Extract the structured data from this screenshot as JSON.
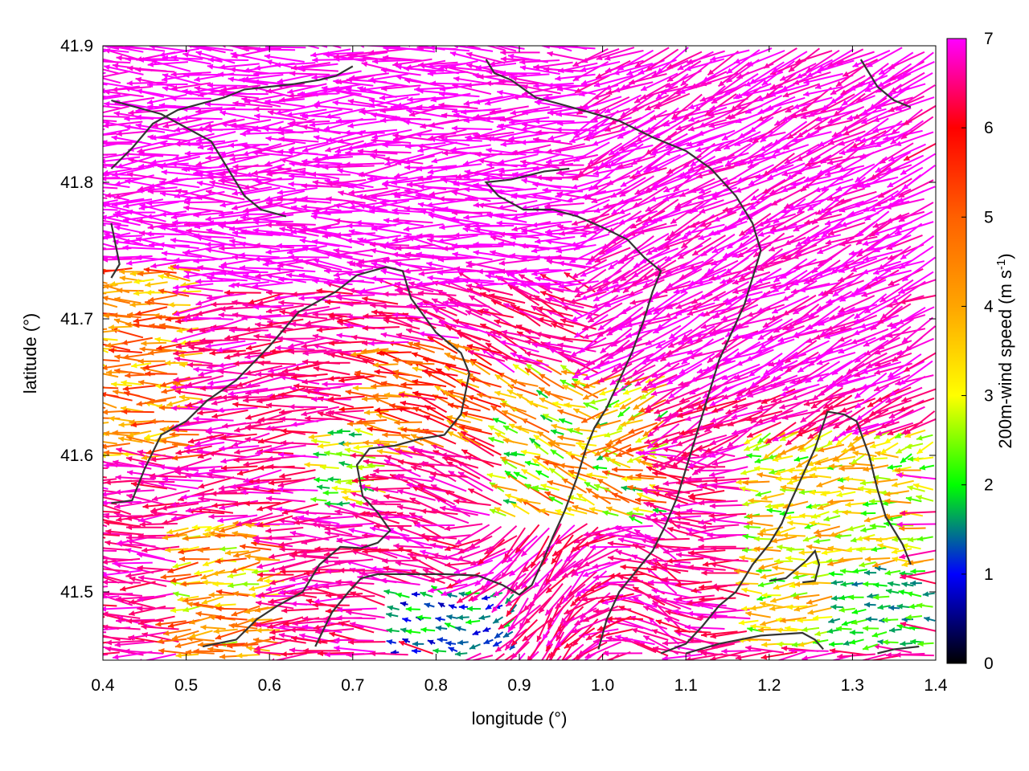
{
  "chart_data": {
    "type": "vector-field",
    "xlabel": "longitude (°)",
    "ylabel": "latitude (°)",
    "colorbar_label": "200m-wind speed (m s",
    "colorbar_label_sup": "-1",
    "colorbar_label_end": ")",
    "xlim": [
      0.4,
      1.4
    ],
    "ylim": [
      41.45,
      41.9
    ],
    "x_ticks": [
      {
        "value": 0.4,
        "label": "0.4"
      },
      {
        "value": 0.5,
        "label": "0.5"
      },
      {
        "value": 0.6,
        "label": "0.6"
      },
      {
        "value": 0.7,
        "label": "0.7"
      },
      {
        "value": 0.8,
        "label": "0.8"
      },
      {
        "value": 0.9,
        "label": "0.9"
      },
      {
        "value": 1.0,
        "label": "1.0"
      },
      {
        "value": 1.1,
        "label": "1.1"
      },
      {
        "value": 1.2,
        "label": "1.2"
      },
      {
        "value": 1.3,
        "label": "1.3"
      },
      {
        "value": 1.4,
        "label": "1.4"
      }
    ],
    "y_ticks": [
      {
        "value": 41.5,
        "label": "41.5"
      },
      {
        "value": 41.6,
        "label": "41.6"
      },
      {
        "value": 41.7,
        "label": "41.7"
      },
      {
        "value": 41.8,
        "label": "41.8"
      },
      {
        "value": 41.9,
        "label": "41.9"
      }
    ],
    "colorbar_ticks": [
      {
        "value": 0,
        "label": "0"
      },
      {
        "value": 1,
        "label": "1"
      },
      {
        "value": 2,
        "label": "2"
      },
      {
        "value": 3,
        "label": "3"
      },
      {
        "value": 4,
        "label": "4"
      },
      {
        "value": 5,
        "label": "5"
      },
      {
        "value": 6,
        "label": "6"
      },
      {
        "value": 7,
        "label": "7"
      }
    ],
    "colorbar_range": [
      0,
      7
    ],
    "colormap": [
      {
        "value": 0,
        "color": "#000000"
      },
      {
        "value": 1,
        "color": "#0000ff"
      },
      {
        "value": 1.5,
        "color": "#008080"
      },
      {
        "value": 2,
        "color": "#00ff00"
      },
      {
        "value": 3,
        "color": "#ffff00"
      },
      {
        "value": 4,
        "color": "#ffa500"
      },
      {
        "value": 5,
        "color": "#ff6000"
      },
      {
        "value": 6,
        "color": "#ff0000"
      },
      {
        "value": 7,
        "color": "#ff00ff"
      }
    ],
    "contour_color": "#333333",
    "contours": [
      [
        [
          0.41,
          41.565
        ],
        [
          0.435,
          41.567
        ],
        [
          0.45,
          41.59
        ],
        [
          0.47,
          41.615
        ],
        [
          0.5,
          41.625
        ],
        [
          0.525,
          41.64
        ],
        [
          0.56,
          41.655
        ],
        [
          0.6,
          41.68
        ],
        [
          0.635,
          41.705
        ],
        [
          0.68,
          41.72
        ],
        [
          0.705,
          41.732
        ],
        [
          0.74,
          41.738
        ],
        [
          0.76,
          41.735
        ],
        [
          0.77,
          41.715
        ],
        [
          0.8,
          41.69
        ],
        [
          0.83,
          41.675
        ],
        [
          0.84,
          41.66
        ],
        [
          0.83,
          41.63
        ],
        [
          0.81,
          41.615
        ],
        [
          0.78,
          41.612
        ],
        [
          0.75,
          41.607
        ],
        [
          0.72,
          41.605
        ],
        [
          0.705,
          41.593
        ],
        [
          0.712,
          41.57
        ],
        [
          0.73,
          41.558
        ],
        [
          0.745,
          41.545
        ],
        [
          0.73,
          41.536
        ],
        [
          0.71,
          41.532
        ],
        [
          0.685,
          41.533
        ],
        [
          0.66,
          41.52
        ],
        [
          0.64,
          41.5
        ],
        [
          0.61,
          41.49
        ],
        [
          0.585,
          41.48
        ],
        [
          0.56,
          41.465
        ],
        [
          0.52,
          41.46
        ]
      ],
      [
        [
          0.655,
          41.46
        ],
        [
          0.675,
          41.485
        ],
        [
          0.695,
          41.5
        ],
        [
          0.71,
          41.51
        ],
        [
          0.73,
          41.513
        ],
        [
          0.77,
          41.513
        ],
        [
          0.81,
          41.513
        ],
        [
          0.85,
          41.512
        ],
        [
          0.88,
          41.505
        ],
        [
          0.9,
          41.498
        ],
        [
          0.915,
          41.505
        ],
        [
          0.93,
          41.525
        ],
        [
          0.94,
          41.54
        ],
        [
          0.955,
          41.56
        ],
        [
          0.97,
          41.585
        ],
        [
          0.98,
          41.605
        ],
        [
          0.99,
          41.62
        ],
        [
          1.005,
          41.635
        ],
        [
          1.02,
          41.655
        ],
        [
          1.035,
          41.675
        ],
        [
          1.05,
          41.7
        ],
        [
          1.06,
          41.72
        ],
        [
          1.07,
          41.735
        ],
        [
          1.05,
          41.745
        ],
        [
          1.03,
          41.758
        ],
        [
          1.0,
          41.767
        ],
        [
          0.97,
          41.775
        ],
        [
          0.94,
          41.78
        ],
        [
          0.905,
          41.78
        ],
        [
          0.875,
          41.79
        ],
        [
          0.86,
          41.8
        ],
        [
          0.89,
          41.802
        ],
        [
          0.93,
          41.808
        ],
        [
          0.96,
          41.81
        ]
      ],
      [
        [
          0.995,
          41.458
        ],
        [
          1.005,
          41.48
        ],
        [
          1.02,
          41.5
        ],
        [
          1.04,
          41.515
        ],
        [
          1.06,
          41.53
        ],
        [
          1.075,
          41.548
        ],
        [
          1.09,
          41.57
        ],
        [
          1.1,
          41.59
        ],
        [
          1.11,
          41.61
        ],
        [
          1.12,
          41.63
        ],
        [
          1.13,
          41.65
        ],
        [
          1.14,
          41.67
        ],
        [
          1.155,
          41.69
        ],
        [
          1.17,
          41.71
        ],
        [
          1.18,
          41.73
        ],
        [
          1.19,
          41.75
        ],
        [
          1.18,
          41.77
        ],
        [
          1.16,
          41.79
        ],
        [
          1.13,
          41.81
        ],
        [
          1.1,
          41.823
        ],
        [
          1.06,
          41.833
        ],
        [
          1.02,
          41.845
        ],
        [
          0.98,
          41.852
        ],
        [
          0.945,
          41.858
        ],
        [
          0.92,
          41.862
        ],
        [
          0.89,
          41.875
        ],
        [
          0.87,
          41.88
        ],
        [
          0.86,
          41.89
        ]
      ],
      [
        [
          1.1,
          41.455
        ],
        [
          1.14,
          41.462
        ],
        [
          1.19,
          41.468
        ],
        [
          1.24,
          41.47
        ],
        [
          1.255,
          41.465
        ],
        [
          1.265,
          41.458
        ]
      ],
      [
        [
          1.33,
          41.455
        ],
        [
          1.35,
          41.458
        ],
        [
          1.38,
          41.46
        ]
      ],
      [
        [
          1.2,
          41.508
        ],
        [
          1.22,
          41.51
        ],
        [
          1.245,
          41.523
        ],
        [
          1.255,
          41.53
        ],
        [
          1.26,
          41.52
        ],
        [
          1.255,
          41.508
        ],
        [
          1.24,
          41.507
        ]
      ],
      [
        [
          1.37,
          41.52
        ],
        [
          1.36,
          41.535
        ],
        [
          1.34,
          41.555
        ],
        [
          1.33,
          41.575
        ],
        [
          1.32,
          41.6
        ],
        [
          1.305,
          41.625
        ],
        [
          1.29,
          41.63
        ],
        [
          1.27,
          41.632
        ],
        [
          1.255,
          41.605
        ],
        [
          1.24,
          41.585
        ],
        [
          1.225,
          41.565
        ],
        [
          1.215,
          41.55
        ],
        [
          1.2,
          41.535
        ],
        [
          1.18,
          41.52
        ],
        [
          1.16,
          41.5
        ],
        [
          1.14,
          41.49
        ],
        [
          1.12,
          41.475
        ],
        [
          1.1,
          41.462
        ],
        [
          1.07,
          41.455
        ]
      ],
      [
        [
          0.41,
          41.77
        ],
        [
          0.42,
          41.74
        ],
        [
          0.41,
          41.73
        ]
      ],
      [
        [
          0.41,
          41.81
        ],
        [
          0.435,
          41.825
        ],
        [
          0.46,
          41.843
        ],
        [
          0.49,
          41.853
        ],
        [
          0.52,
          41.858
        ],
        [
          0.545,
          41.862
        ],
        [
          0.57,
          41.868
        ],
        [
          0.6,
          41.87
        ],
        [
          0.63,
          41.872
        ],
        [
          0.66,
          41.875
        ],
        [
          0.68,
          41.878
        ],
        [
          0.7,
          41.885
        ]
      ],
      [
        [
          0.41,
          41.86
        ],
        [
          0.44,
          41.855
        ],
        [
          0.47,
          41.85
        ],
        [
          0.5,
          41.84
        ],
        [
          0.53,
          41.83
        ],
        [
          0.55,
          41.81
        ],
        [
          0.57,
          41.79
        ],
        [
          0.59,
          41.78
        ],
        [
          0.62,
          41.775
        ]
      ],
      [
        [
          1.31,
          41.89
        ],
        [
          1.33,
          41.87
        ],
        [
          1.35,
          41.86
        ],
        [
          1.37,
          41.855
        ]
      ]
    ],
    "regions": [
      {
        "area": [
          0.4,
          41.45,
          1.4,
          41.9
        ],
        "speed": 6.6,
        "spread": 0.4
      },
      {
        "area": [
          0.4,
          41.72,
          1.0,
          41.9
        ],
        "speed": 7.0,
        "spread": 0.2
      },
      {
        "area": [
          1.0,
          41.65,
          1.4,
          41.9
        ],
        "speed": 6.9,
        "spread": 0.3
      },
      {
        "area": [
          0.72,
          41.6,
          0.88,
          41.68
        ],
        "speed": 5.0,
        "spread": 1.4
      },
      {
        "area": [
          0.88,
          41.55,
          1.08,
          41.66
        ],
        "speed": 3.5,
        "spread": 1.8
      },
      {
        "area": [
          1.18,
          41.46,
          1.4,
          41.62
        ],
        "speed": 3.2,
        "spread": 1.2
      },
      {
        "area": [
          1.28,
          41.46,
          1.4,
          41.52
        ],
        "speed": 1.9,
        "spread": 0.5
      },
      {
        "area": [
          0.75,
          41.455,
          0.9,
          41.5
        ],
        "speed": 1.4,
        "spread": 0.7
      },
      {
        "area": [
          0.66,
          41.56,
          0.74,
          41.62
        ],
        "speed": 2.6,
        "spread": 1.0
      },
      {
        "area": [
          0.4,
          41.6,
          0.52,
          41.74
        ],
        "speed": 4.4,
        "spread": 1.3
      },
      {
        "area": [
          0.5,
          41.45,
          0.62,
          41.55
        ],
        "speed": 4.0,
        "spread": 1.5
      }
    ]
  }
}
